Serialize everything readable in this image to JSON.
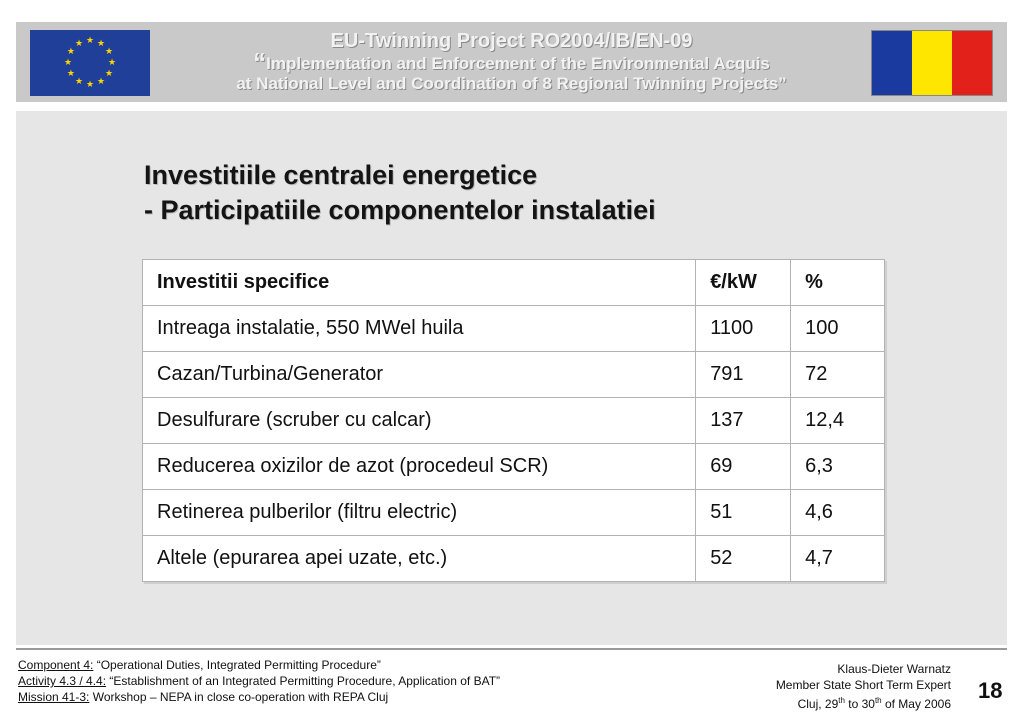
{
  "header": {
    "title": "EU-Twinning Project RO2004/IB/EN-09",
    "subtitle_line1": "Implementation and Enforcement of the Environmental Acquis",
    "subtitle_line2": "at National Level and Coordination of 8 Regional Twinning Projects”",
    "open_quote": "“",
    "eu_flag_icon": "eu-flag-icon",
    "ro_flag_icon": "romania-flag-icon",
    "eu_flag_color": "#1f3f99",
    "eu_star_color": "#ffd400",
    "ro_flag_colors": [
      "#1a3aa0",
      "#ffe600",
      "#e3211b"
    ]
  },
  "slide": {
    "title_line1": "Investitiile centralei energetice",
    "title_line2": "- Participatiile componentelor instalatiei"
  },
  "table": {
    "headers": [
      "Investitii specifice",
      "€/kW",
      "%"
    ],
    "rows": [
      [
        "Intreaga instalatie, 550 MWel huila",
        "1100",
        "100"
      ],
      [
        "Cazan/Turbina/Generator",
        "791",
        "72"
      ],
      [
        "Desulfurare (scruber cu calcar)",
        "137",
        "12,4"
      ],
      [
        "Reducerea oxizilor de azot (procedeul SCR)",
        "69",
        "6,3"
      ],
      [
        "Retinerea pulberilor (filtru electric)",
        "51",
        "4,6"
      ],
      [
        "Altele (epurarea apei uzate, etc.)",
        "52",
        "4,7"
      ]
    ]
  },
  "footer": {
    "component_label": "Component 4:",
    "component_text": " “Operational Duties, Integrated Permitting Procedure”",
    "activity_label": "Activity 4.3 / 4.4:",
    "activity_text": " “Establishment of an Integrated Permitting Procedure, Application of BAT”",
    "mission_label": "Mission 41-3:",
    "mission_text": " Workshop – NEPA in close co-operation with REPA Cluj",
    "author": "Klaus-Dieter Warnatz",
    "role": "Member State Short Term Expert",
    "date_prefix": "Cluj, 29",
    "date_sup1": "th",
    "date_mid": " to 30",
    "date_sup2": "th",
    "date_suffix": " of May 2006",
    "page_number": "18"
  }
}
